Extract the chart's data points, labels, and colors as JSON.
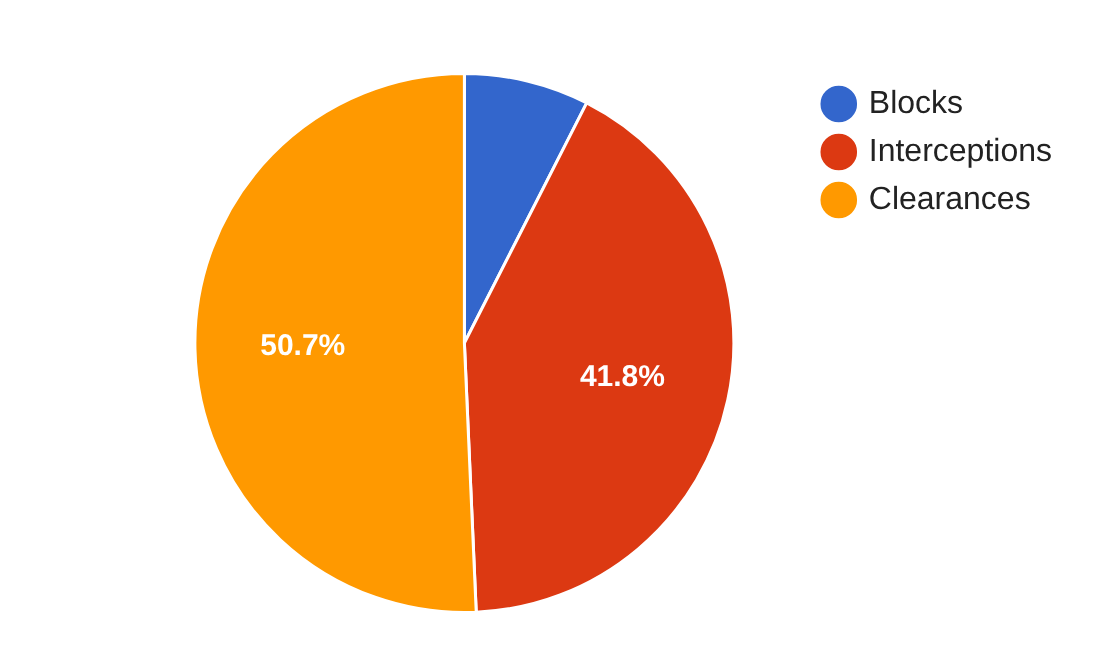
{
  "chart_data": {
    "type": "pie",
    "categories": [
      "Blocks",
      "Interceptions",
      "Clearances"
    ],
    "values": [
      7.5,
      41.8,
      50.7
    ],
    "value_labels": [
      null,
      "41.8%",
      "50.7%"
    ],
    "colors": [
      "#3366cc",
      "#dc3912",
      "#ff9900"
    ],
    "legend": "top right"
  }
}
